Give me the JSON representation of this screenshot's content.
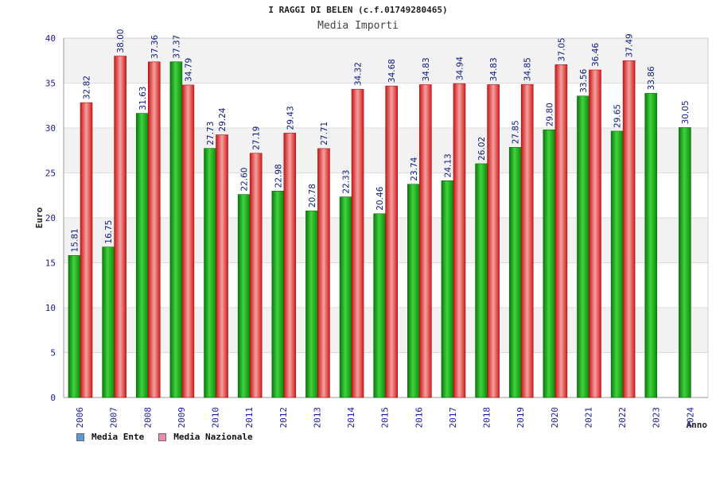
{
  "title": "I RAGGI DI BELEN (c.f.01749280465)",
  "subtitle": "Media Importi",
  "chart_data": {
    "type": "bar",
    "ylabel": "Euro",
    "xlabel": "Anno",
    "ylim": [
      0,
      40
    ],
    "yticks": [
      0,
      5,
      10,
      15,
      20,
      25,
      30,
      35,
      40
    ],
    "grid": true,
    "categories": [
      "2006",
      "2007",
      "2008",
      "2009",
      "2010",
      "2011",
      "2012",
      "2013",
      "2014",
      "2015",
      "2016",
      "2017",
      "2018",
      "2019",
      "2020",
      "2021",
      "2022",
      "2023",
      "2024"
    ],
    "series": [
      {
        "name": "Media Ente",
        "color": "#1aa01a",
        "values": [
          15.81,
          16.75,
          31.63,
          37.37,
          27.73,
          22.6,
          22.98,
          20.78,
          22.33,
          20.46,
          23.74,
          24.13,
          26.02,
          27.85,
          29.8,
          33.56,
          29.65,
          33.86,
          30.05
        ],
        "labels": [
          "15.81",
          "16.75",
          "31.63",
          "37.37",
          "27.73",
          "22.60",
          "22.98",
          "20.78",
          "22.33",
          "20.46",
          "23.74",
          "24.13",
          "26.02",
          "27.85",
          "29.80",
          "33.56",
          "29.65",
          "33.86",
          "30.05"
        ]
      },
      {
        "name": "Media Nazionale",
        "color": "#e02828",
        "values": [
          32.82,
          38.0,
          37.36,
          34.79,
          29.24,
          27.19,
          29.43,
          27.71,
          34.32,
          34.68,
          34.83,
          34.94,
          34.83,
          34.85,
          37.05,
          36.46,
          37.49,
          null,
          null
        ],
        "labels": [
          "32.82",
          "38.00",
          "37.36",
          "34.79",
          "29.24",
          "27.19",
          "29.43",
          "27.71",
          "34.32",
          "34.68",
          "34.83",
          "34.94",
          "34.83",
          "34.85",
          "37.05",
          "36.46",
          "37.49",
          null,
          null
        ]
      }
    ],
    "legend": [
      {
        "label": "Media Ente",
        "color": "#5b9bd5"
      },
      {
        "label": "Media Nazionale",
        "color": "#e88bb5"
      }
    ]
  }
}
